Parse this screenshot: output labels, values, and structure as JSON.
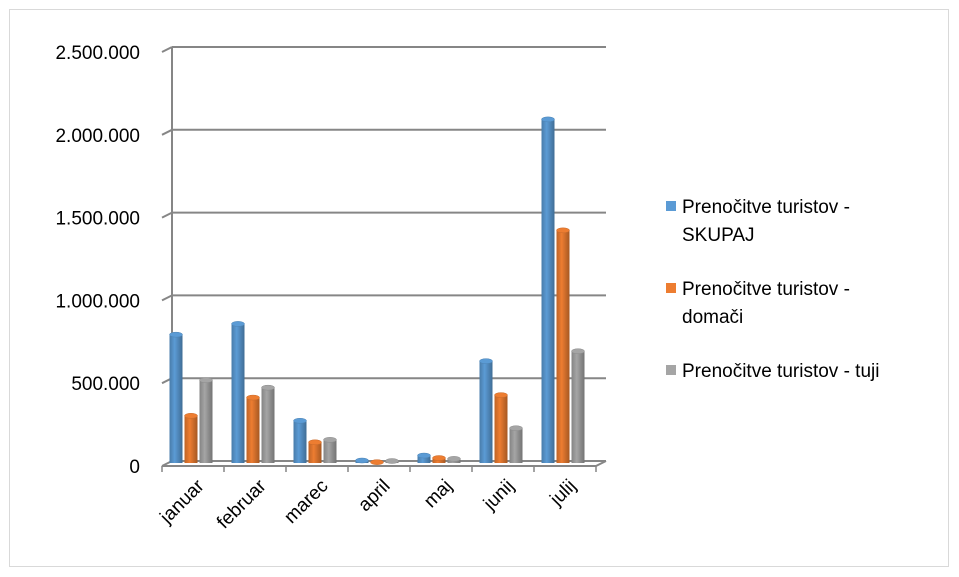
{
  "chart_data": {
    "type": "bar",
    "categories": [
      "januar",
      "februar",
      "marec",
      "april",
      "maj",
      "junij",
      "julij"
    ],
    "series": [
      {
        "name": "Prenočitve turistov - SKUPAJ",
        "legend_lines": [
          "Prenočitve turistov -",
          "SKUPAJ"
        ],
        "color": "#5b9bd5",
        "values": [
          775000,
          840000,
          255000,
          15000,
          45000,
          615000,
          2075000
        ]
      },
      {
        "name": "Prenočitve turistov - domači",
        "legend_lines": [
          "Prenočitve turistov -",
          "domači"
        ],
        "color": "#ed7d31",
        "values": [
          285000,
          395000,
          125000,
          5000,
          30000,
          410000,
          1405000
        ]
      },
      {
        "name": "Prenočitve turistov - tuji",
        "legend_lines": [
          "Prenočitve turistov - tuji"
        ],
        "color": "#a5a5a5",
        "values": [
          500000,
          455000,
          140000,
          12000,
          25000,
          210000,
          675000
        ]
      }
    ],
    "yticks": [
      "0",
      "500.000",
      "1.000.000",
      "1.500.000",
      "2.000.000",
      "2.500.000"
    ],
    "ylim": [
      0,
      2500000
    ],
    "grid": true,
    "legend": "right"
  }
}
